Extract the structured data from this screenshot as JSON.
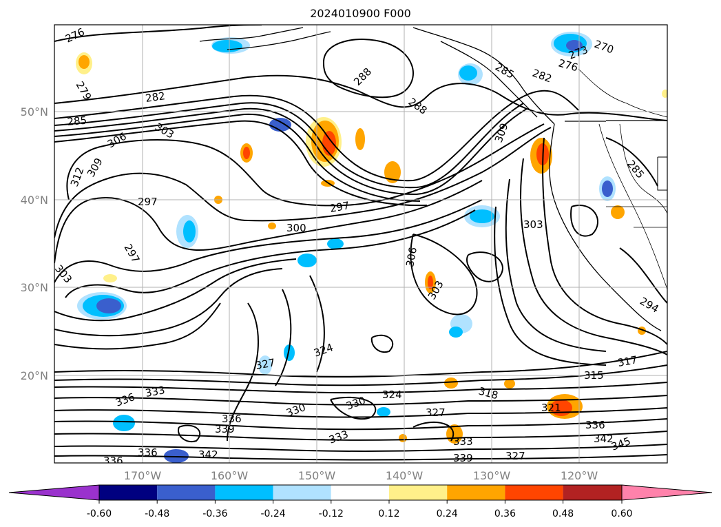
{
  "title": "2024010900 F000",
  "lat_labels": [
    "50°N",
    "40°N",
    "30°N",
    "20°N"
  ],
  "lon_labels": [
    "170°W",
    "160°W",
    "150°W",
    "140°W",
    "130°W",
    "120°W"
  ],
  "colorbar": {
    "colors": [
      "#9a32cd",
      "#000080",
      "#3a5fcd",
      "#00bfff",
      "#b0e2ff",
      "#ffffff",
      "#fff08a",
      "#ffa500",
      "#ff4500",
      "#b22222",
      "#ff82ab"
    ],
    "tick_labels": [
      "-0.60",
      "-0.48",
      "-0.36",
      "-0.24",
      "-0.12",
      "0.12",
      "0.24",
      "0.36",
      "0.48",
      "0.60"
    ]
  },
  "contour_labels": [
    "276",
    "279",
    "282",
    "285",
    "303",
    "306",
    "309",
    "312",
    "297",
    "288",
    "288",
    "285",
    "282",
    "276",
    "273",
    "270",
    "309",
    "297",
    "297",
    "300",
    "303",
    "306",
    "303",
    "303",
    "294",
    "285",
    "324",
    "327",
    "336",
    "333",
    "330",
    "330",
    "324",
    "327",
    "318",
    "317",
    "315",
    "321",
    "336",
    "339",
    "342",
    "336",
    "336",
    "333",
    "333",
    "339",
    "327",
    "342",
    "345",
    "336"
  ],
  "colors": {
    "contour": "#000000",
    "grid": "#b0b0b0",
    "coast": "#000000"
  }
}
